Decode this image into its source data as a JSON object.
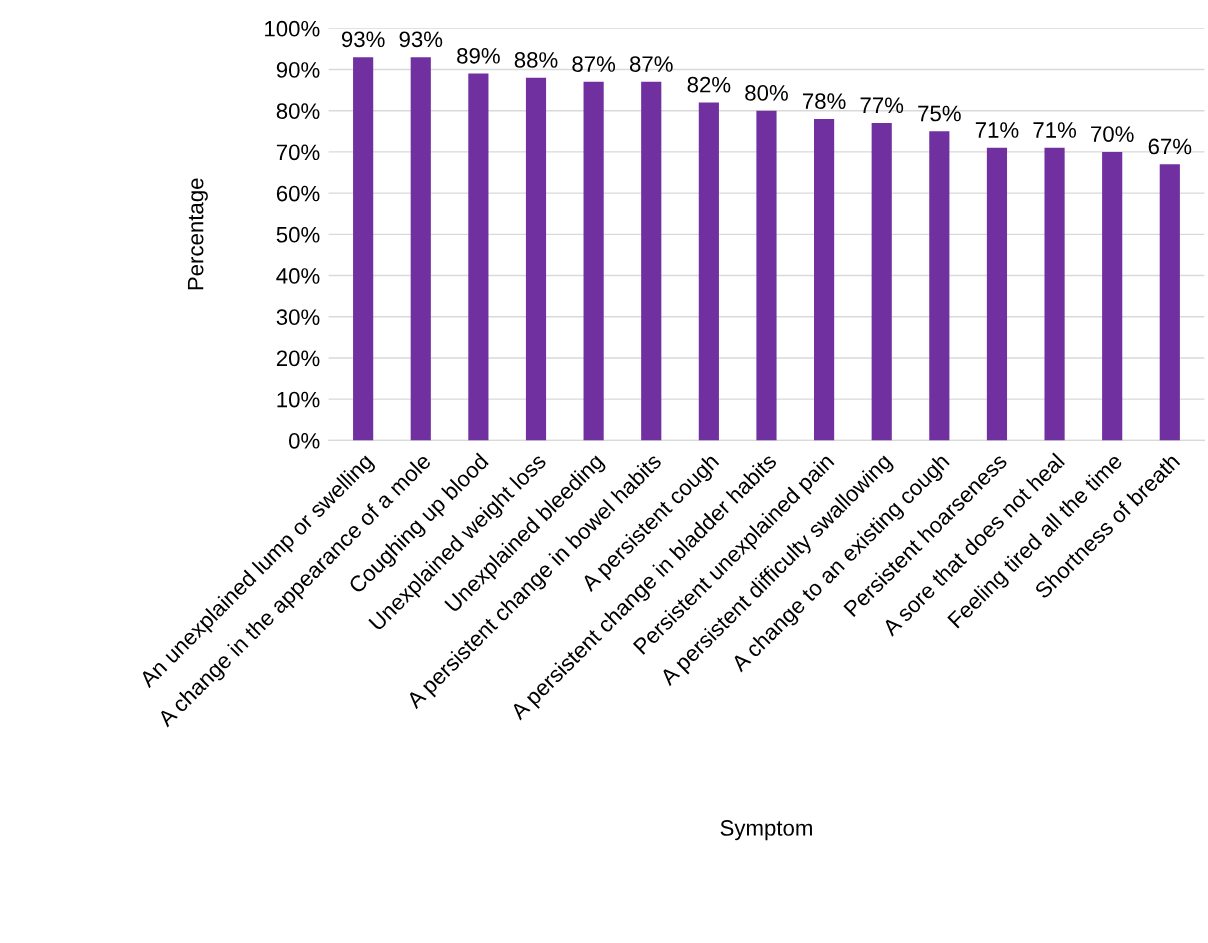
{
  "chart_data": {
    "type": "bar",
    "xlabel": "Symptom",
    "ylabel": "Percentage",
    "categories": [
      "An unexplained lump or swelling",
      "A change in the appearance of a mole",
      "Coughing up blood",
      "Unexplained weight loss",
      "Unexplained bleeding",
      "A persistent change in bowel habits",
      "A persistent cough",
      "A persistent change in bladder habits",
      "Persistent unexplained pain",
      "A persistent difficulty swallowing",
      "A change to an existing cough",
      "Persistent hoarseness",
      "A sore that does not heal",
      "Feeling tired all the time",
      "Shortness of breath"
    ],
    "values": [
      93,
      93,
      89,
      88,
      87,
      87,
      82,
      80,
      78,
      77,
      75,
      71,
      71,
      70,
      67
    ],
    "value_labels": [
      "93%",
      "93%",
      "89%",
      "88%",
      "87%",
      "87%",
      "82%",
      "80%",
      "78%",
      "77%",
      "75%",
      "71%",
      "71%",
      "70%",
      "67%"
    ],
    "color": "#7030a0",
    "ylim": [
      0,
      100
    ],
    "yticks": [
      {
        "value": 0,
        "label": "0%"
      },
      {
        "value": 10,
        "label": "10%"
      },
      {
        "value": 20,
        "label": "20%"
      },
      {
        "value": 30,
        "label": "30%"
      },
      {
        "value": 40,
        "label": "40%"
      },
      {
        "value": 50,
        "label": "50%"
      },
      {
        "value": 60,
        "label": "60%"
      },
      {
        "value": 70,
        "label": "70%"
      },
      {
        "value": 80,
        "label": "80%"
      },
      {
        "value": 90,
        "label": "90%"
      },
      {
        "value": 100,
        "label": "100%"
      }
    ],
    "grid": "y"
  }
}
